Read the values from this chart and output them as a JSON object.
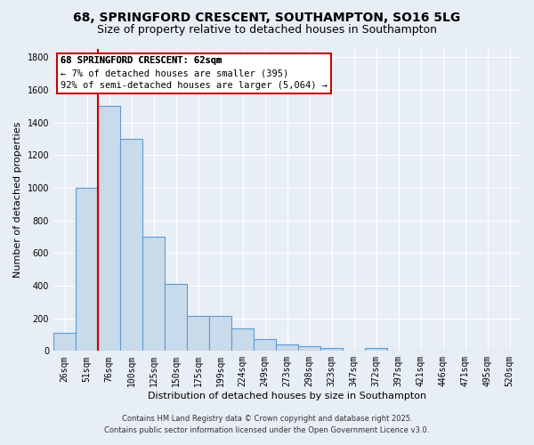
{
  "title": "68, SPRINGFORD CRESCENT, SOUTHAMPTON, SO16 5LG",
  "subtitle": "Size of property relative to detached houses in Southampton",
  "xlabel": "Distribution of detached houses by size in Southampton",
  "ylabel": "Number of detached properties",
  "categories": [
    "26sqm",
    "51sqm",
    "76sqm",
    "100sqm",
    "125sqm",
    "150sqm",
    "175sqm",
    "199sqm",
    "224sqm",
    "249sqm",
    "273sqm",
    "298sqm",
    "323sqm",
    "347sqm",
    "372sqm",
    "397sqm",
    "421sqm",
    "446sqm",
    "471sqm",
    "495sqm",
    "520sqm"
  ],
  "values": [
    110,
    1000,
    1500,
    1300,
    700,
    410,
    215,
    215,
    140,
    75,
    40,
    30,
    20,
    0,
    20,
    0,
    0,
    0,
    0,
    0,
    0
  ],
  "bar_color": "#c9daea",
  "bar_edge_color": "#5b9bd5",
  "vline_color": "#cc0000",
  "ylim": [
    0,
    1850
  ],
  "yticks": [
    0,
    200,
    400,
    600,
    800,
    1000,
    1200,
    1400,
    1600,
    1800
  ],
  "annotation_title": "68 SPRINGFORD CRESCENT: 62sqm",
  "annotation_line1": "← 7% of detached houses are smaller (395)",
  "annotation_line2": "92% of semi-detached houses are larger (5,064) →",
  "annotation_box_facecolor": "#ffffff",
  "annotation_box_edgecolor": "#cc0000",
  "bg_color": "#e8eef5",
  "plot_bg_color": "#e8eef5",
  "footer_line1": "Contains HM Land Registry data © Crown copyright and database right 2025.",
  "footer_line2": "Contains public sector information licensed under the Open Government Licence v3.0.",
  "title_fontsize": 10,
  "subtitle_fontsize": 9,
  "axis_label_fontsize": 8,
  "tick_fontsize": 7,
  "annotation_fontsize": 7.5,
  "footer_fontsize": 6
}
